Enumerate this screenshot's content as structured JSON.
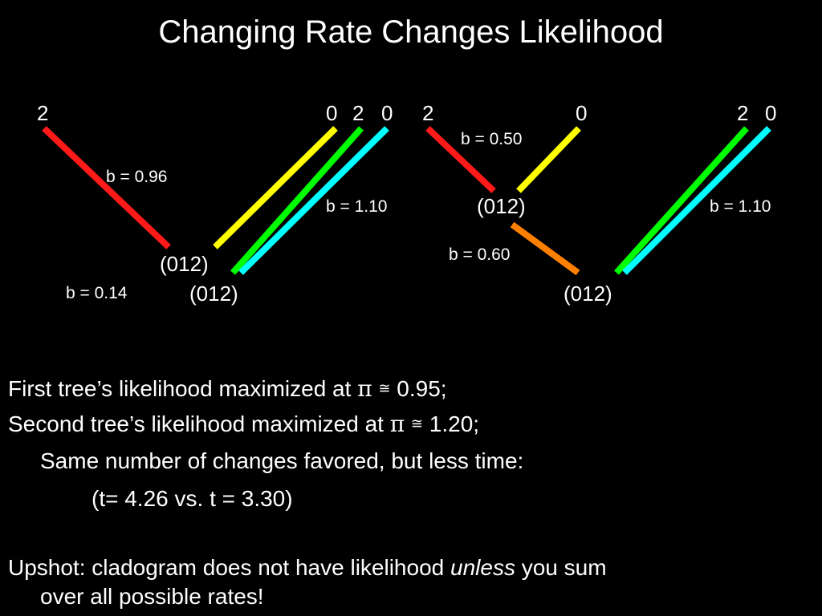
{
  "title": "Changing Rate Changes Likelihood",
  "colors": {
    "background": "#000000",
    "text": "#ffffff",
    "red": "#ff1a1a",
    "yellow": "#ffff00",
    "green": "#00ff00",
    "cyan": "#00ffff",
    "orange": "#ff8000"
  },
  "tree1": {
    "tips": [
      "2",
      "0",
      "2",
      "0"
    ],
    "nodes": [
      "(012)",
      "(012)"
    ],
    "branch_lengths": [
      "b = 0.96",
      "b = 1.10",
      "b = 0.14"
    ]
  },
  "tree2": {
    "tips": [
      "2",
      "0",
      "2",
      "0"
    ],
    "nodes": [
      "(012)",
      "(012)"
    ],
    "branch_lengths": [
      "b = 0.50",
      "b = 1.10",
      "b = 0.60"
    ]
  },
  "text": {
    "line1_pre": "First tree’s likelihood maximized at ",
    "line1_post": " 0.95;",
    "line2_pre": "Second tree’s likelihood maximized at ",
    "line2_post": " 1.20;",
    "pi_symbol": "π",
    "approx_symbol": "≅",
    "line3": "Same number of changes favored, but less time:",
    "line4": "(t= 4.26 vs. t = 3.30)",
    "upshot_pre": "Upshot: cladogram does not have likelihood ",
    "upshot_em": "unless",
    "upshot_post": " you sum",
    "upshot_line2": "over all possible rates!"
  }
}
